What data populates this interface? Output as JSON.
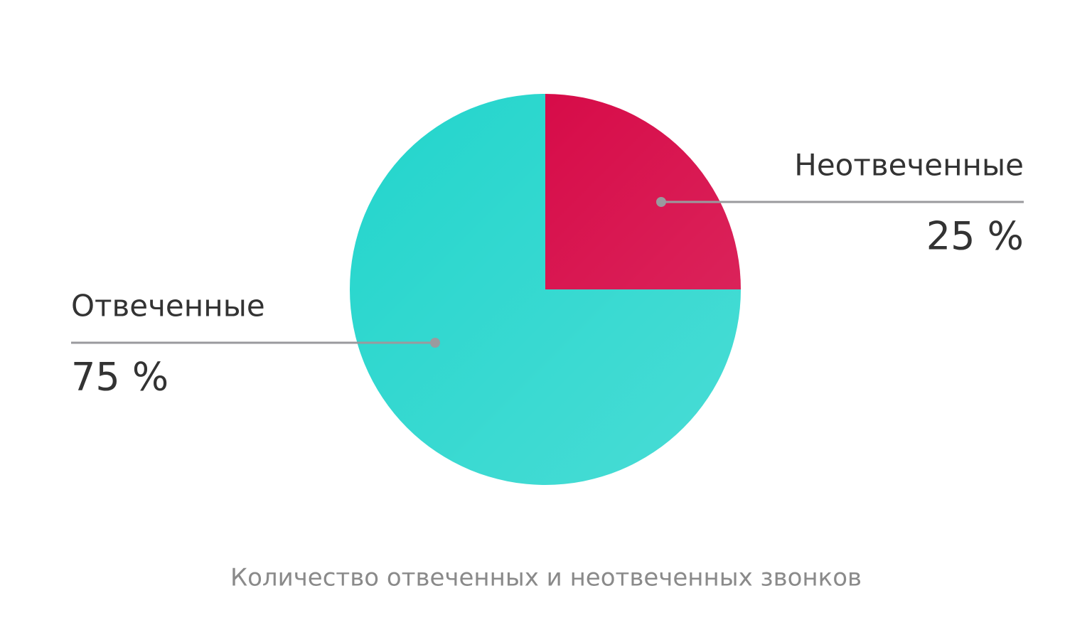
{
  "chart_data": {
    "type": "pie",
    "title": "Количество отвеченных и неотвеченных звонков",
    "categories": [
      "Неотвеченные",
      "Отвеченные"
    ],
    "values": [
      25,
      75
    ],
    "value_labels": [
      "25 %",
      "75 %"
    ],
    "colors": [
      "#d50040",
      "#22d5cc"
    ]
  }
}
